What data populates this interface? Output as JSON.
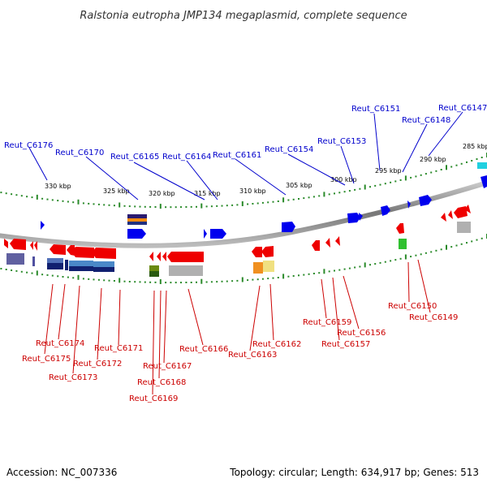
{
  "title": "Ralstonia eutropha JMP134 megaplasmid, complete sequence",
  "footer": {
    "accession": "Accession: NC_007336",
    "summary": "Topology: circular; Length: 634,917 bp; Genes: 513"
  },
  "colors": {
    "forward": "#0000ee",
    "reverse": "#ee0000",
    "tick": "#2a8a2a",
    "backbone": "#888888",
    "label_top": "#0000cc",
    "label_bottom": "#cc0000"
  },
  "kbp_labels": [
    "330 kbp",
    "325 kbp",
    "320 kbp",
    "315 kbp",
    "310 kbp",
    "305 kbp",
    "300 kbp",
    "295 kbp",
    "290 kbp",
    "285 kbp"
  ],
  "genes_top": [
    "Reut_C6176",
    "Reut_C6170",
    "Reut_C6165",
    "Reut_C6164",
    "Reut_C6161",
    "Reut_C6154",
    "Reut_C6153",
    "Reut_C6151",
    "Reut_C6148",
    "Reut_C6147"
  ],
  "genes_bottom": [
    "Reut_C6174",
    "Reut_C6175",
    "Reut_C6173",
    "Reut_C6172",
    "Reut_C6171",
    "Reut_C6167",
    "Reut_C6168",
    "Reut_C6169",
    "Reut_C6166",
    "Reut_C6162",
    "Reut_C6163",
    "Reut_C6159",
    "Reut_C6156",
    "Reut_C6157",
    "Reut_C6150",
    "Reut_C6149"
  ]
}
